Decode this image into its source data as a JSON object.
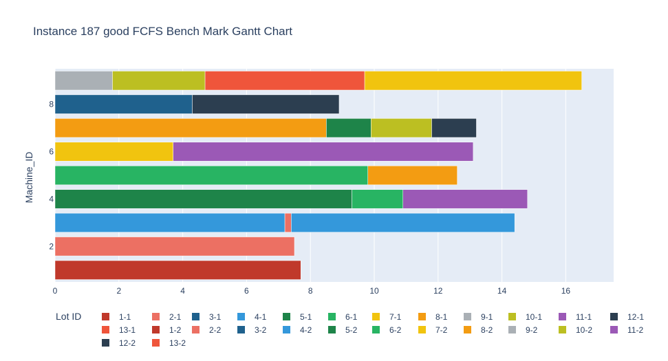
{
  "chart_data": {
    "type": "gantt",
    "title": "Instance 187 good FCFS Bench Mark Gantt Chart",
    "ylabel": "Machine_ID",
    "xlabel": "",
    "xlim": [
      0,
      17.5
    ],
    "ylim": [
      0.5,
      9.5
    ],
    "x_ticks": [
      0,
      2,
      4,
      6,
      8,
      10,
      12,
      14,
      16
    ],
    "y_ticks": [
      2,
      4,
      6,
      8
    ],
    "grid": true,
    "legend_title": "Lot ID",
    "legend_position": "bottom",
    "lots": [
      {
        "name": "1-1",
        "color": "#C0392B"
      },
      {
        "name": "2-1",
        "color": "#EC7063"
      },
      {
        "name": "3-1",
        "color": "#1F618D"
      },
      {
        "name": "4-1",
        "color": "#3498DB"
      },
      {
        "name": "5-1",
        "color": "#1E8449"
      },
      {
        "name": "6-1",
        "color": "#28B463"
      },
      {
        "name": "7-1",
        "color": "#F1C40F"
      },
      {
        "name": "8-1",
        "color": "#F39C12"
      },
      {
        "name": "9-1",
        "color": "#AAB0B5"
      },
      {
        "name": "10-1",
        "color": "#BCBF22"
      },
      {
        "name": "11-1",
        "color": "#9B59B6"
      },
      {
        "name": "12-1",
        "color": "#2C3E50"
      },
      {
        "name": "13-1",
        "color": "#EF553B"
      },
      {
        "name": "1-2",
        "color": "#C0392B"
      },
      {
        "name": "2-2",
        "color": "#EC7063"
      },
      {
        "name": "3-2",
        "color": "#1F618D"
      },
      {
        "name": "4-2",
        "color": "#3498DB"
      },
      {
        "name": "5-2",
        "color": "#1E8449"
      },
      {
        "name": "6-2",
        "color": "#28B463"
      },
      {
        "name": "7-2",
        "color": "#F1C40F"
      },
      {
        "name": "8-2",
        "color": "#F39C12"
      },
      {
        "name": "9-2",
        "color": "#AAB0B5"
      },
      {
        "name": "10-2",
        "color": "#BCBF22"
      },
      {
        "name": "11-2",
        "color": "#9B59B6"
      },
      {
        "name": "12-2",
        "color": "#2C3E50"
      },
      {
        "name": "13-2",
        "color": "#EF553B"
      }
    ],
    "tasks": [
      {
        "machine": 1,
        "start": 0,
        "end": 7.7,
        "lot": "1-1"
      },
      {
        "machine": 2,
        "start": 0,
        "end": 7.5,
        "lot": "2-1"
      },
      {
        "machine": 3,
        "start": 0,
        "end": 7.2,
        "lot": "4-1"
      },
      {
        "machine": 3,
        "start": 7.2,
        "end": 7.4,
        "lot": "2-2"
      },
      {
        "machine": 3,
        "start": 7.4,
        "end": 14.4,
        "lot": "4-2"
      },
      {
        "machine": 4,
        "start": 0,
        "end": 9.3,
        "lot": "5-1"
      },
      {
        "machine": 4,
        "start": 9.3,
        "end": 10.9,
        "lot": "6-2"
      },
      {
        "machine": 4,
        "start": 10.9,
        "end": 14.8,
        "lot": "11-1"
      },
      {
        "machine": 5,
        "start": 0,
        "end": 9.8,
        "lot": "6-1"
      },
      {
        "machine": 5,
        "start": 9.8,
        "end": 12.6,
        "lot": "8-2"
      },
      {
        "machine": 6,
        "start": 0,
        "end": 3.7,
        "lot": "7-1"
      },
      {
        "machine": 6,
        "start": 3.7,
        "end": 13.1,
        "lot": "11-2"
      },
      {
        "machine": 7,
        "start": 0,
        "end": 8.5,
        "lot": "8-1"
      },
      {
        "machine": 7,
        "start": 8.5,
        "end": 9.9,
        "lot": "5-2"
      },
      {
        "machine": 7,
        "start": 9.9,
        "end": 11.8,
        "lot": "10-2"
      },
      {
        "machine": 7,
        "start": 11.8,
        "end": 13.2,
        "lot": "12-1"
      },
      {
        "machine": 8,
        "start": 0,
        "end": 4.3,
        "lot": "3-1"
      },
      {
        "machine": 8,
        "start": 4.3,
        "end": 8.9,
        "lot": "12-2"
      },
      {
        "machine": 9,
        "start": 0,
        "end": 1.8,
        "lot": "9-1"
      },
      {
        "machine": 9,
        "start": 1.8,
        "end": 4.7,
        "lot": "10-1"
      },
      {
        "machine": 9,
        "start": 4.7,
        "end": 9.7,
        "lot": "13-1"
      },
      {
        "machine": 9,
        "start": 9.7,
        "end": 16.5,
        "lot": "7-2"
      }
    ]
  }
}
